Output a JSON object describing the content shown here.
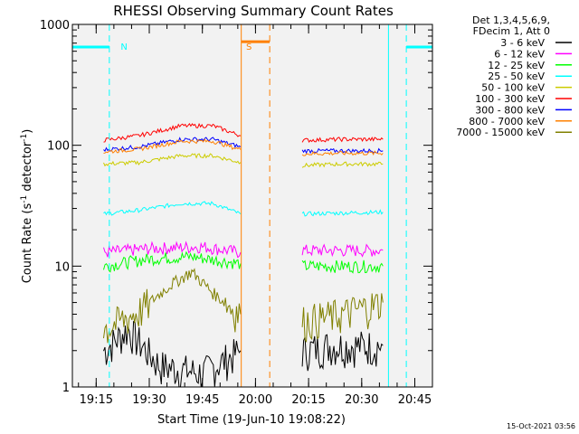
{
  "chart_data": {
    "type": "line",
    "title": "RHESSI Observing Summary Count Rates",
    "xlabel": "Start Time (19-Jun-10 19:08:22)",
    "ylabel_parts": [
      "Count Rate (s",
      "-1",
      " detector",
      "-1",
      ")"
    ],
    "yscale": "log",
    "ylim": [
      1,
      1000
    ],
    "xlim": [
      19.138,
      20.833
    ],
    "x_ticks": [
      {
        "v": 19.25,
        "label": "19:15"
      },
      {
        "v": 19.5,
        "label": "19:30"
      },
      {
        "v": 19.75,
        "label": "19:45"
      },
      {
        "v": 20.0,
        "label": "20:00"
      },
      {
        "v": 20.25,
        "label": "20:15"
      },
      {
        "v": 20.5,
        "label": "20:30"
      },
      {
        "v": 20.75,
        "label": "20:45"
      }
    ],
    "y_ticks": [
      {
        "v": 1,
        "label": "1"
      },
      {
        "v": 10,
        "label": "10"
      },
      {
        "v": 100,
        "label": "100"
      },
      {
        "v": 1000,
        "label": "1000"
      }
    ],
    "legend_header": [
      "Det 1,3,4,5,6,9,",
      "FDecim 1, Att 0"
    ],
    "series": [
      {
        "name": "3 - 6 keV",
        "color": "#000000",
        "segments": [
          [
            [
              19.285,
              2.0
            ],
            [
              19.4,
              3.0
            ],
            [
              19.55,
              1.5
            ],
            [
              19.75,
              1.3
            ],
            [
              19.93,
              2.0
            ]
          ],
          [
            [
              20.22,
              2.0
            ],
            [
              20.35,
              2.2
            ],
            [
              20.6,
              2.2
            ]
          ]
        ]
      },
      {
        "name": "6 - 12 keV",
        "color": "#ff00ff",
        "segments": [
          [
            [
              19.285,
              13.0
            ],
            [
              19.5,
              14.0
            ],
            [
              19.75,
              14.5
            ],
            [
              19.93,
              13.0
            ]
          ],
          [
            [
              20.22,
              13.5
            ],
            [
              20.4,
              13.5
            ],
            [
              20.6,
              13.5
            ]
          ]
        ]
      },
      {
        "name": "12 - 25 keV",
        "color": "#00ff00",
        "segments": [
          [
            [
              19.285,
              10.0
            ],
            [
              19.5,
              11.5
            ],
            [
              19.7,
              12.0
            ],
            [
              19.93,
              10.5
            ]
          ],
          [
            [
              20.22,
              10.0
            ],
            [
              20.4,
              10.0
            ],
            [
              20.6,
              10.0
            ]
          ]
        ]
      },
      {
        "name": "25 - 50 keV",
        "color": "#00ffff",
        "segments": [
          [
            [
              19.285,
              27.0
            ],
            [
              19.45,
              29.0
            ],
            [
              19.65,
              33.0
            ],
            [
              19.8,
              33.0
            ],
            [
              19.93,
              27.0
            ]
          ],
          [
            [
              20.22,
              27.0
            ],
            [
              20.4,
              27.5
            ],
            [
              20.6,
              28.0
            ]
          ]
        ]
      },
      {
        "name": "50 - 100 keV",
        "color": "#cccc00",
        "segments": [
          [
            [
              19.285,
              70.0
            ],
            [
              19.45,
              72.0
            ],
            [
              19.65,
              82.0
            ],
            [
              19.8,
              82.0
            ],
            [
              19.93,
              72.0
            ]
          ],
          [
            [
              20.22,
              68.0
            ],
            [
              20.4,
              70.0
            ],
            [
              20.6,
              70.0
            ]
          ]
        ]
      },
      {
        "name": "100 - 300 keV",
        "color": "#ff0000",
        "segments": [
          [
            [
              19.285,
              110.0
            ],
            [
              19.45,
              120.0
            ],
            [
              19.65,
              145.0
            ],
            [
              19.8,
              145.0
            ],
            [
              19.93,
              120.0
            ]
          ],
          [
            [
              20.22,
              110.0
            ],
            [
              20.4,
              112.0
            ],
            [
              20.6,
              112.0
            ]
          ]
        ]
      },
      {
        "name": "300 - 800 keV",
        "color": "#0000ff",
        "segments": [
          [
            [
              19.285,
              92.0
            ],
            [
              19.45,
              97.0
            ],
            [
              19.65,
              112.0
            ],
            [
              19.8,
              112.0
            ],
            [
              19.93,
              97.0
            ]
          ],
          [
            [
              20.22,
              90.0
            ],
            [
              20.4,
              90.0
            ],
            [
              20.6,
              90.0
            ]
          ]
        ]
      },
      {
        "name": "800 - 7000 keV",
        "color": "#ff8000",
        "segments": [
          [
            [
              19.285,
              88.0
            ],
            [
              19.45,
              93.0
            ],
            [
              19.65,
              108.0
            ],
            [
              19.8,
              108.0
            ],
            [
              19.93,
              92.0
            ]
          ],
          [
            [
              20.22,
              85.0
            ],
            [
              20.4,
              86.0
            ],
            [
              20.6,
              86.0
            ]
          ]
        ]
      },
      {
        "name": "7000 - 15000 keV",
        "color": "#808000",
        "segments": [
          [
            [
              19.285,
              3.0
            ],
            [
              19.45,
              4.2
            ],
            [
              19.6,
              7.0
            ],
            [
              19.7,
              9.0
            ],
            [
              19.8,
              6.0
            ],
            [
              19.93,
              4.0
            ]
          ],
          [
            [
              20.22,
              3.5
            ],
            [
              20.4,
              4.0
            ],
            [
              20.6,
              5.0
            ]
          ]
        ]
      }
    ],
    "annotations": [
      {
        "text": "N",
        "color": "#00ffff",
        "x": 19.34
      },
      {
        "text": "S",
        "color": "#ff8000",
        "x": 19.93
      }
    ],
    "flags": [
      {
        "name": "night",
        "color": "#00ffff",
        "value": 650,
        "x": [
          19.138,
          19.312
        ]
      },
      {
        "name": "night",
        "color": "#00ffff",
        "value": 650,
        "x": [
          20.71,
          20.833
        ]
      },
      {
        "name": "saa",
        "color": "#ff8000",
        "value": 720,
        "x": [
          19.933,
          20.067
        ]
      }
    ],
    "vlines": [
      {
        "x": 19.138,
        "color": "#00ffff",
        "dash": false
      },
      {
        "x": 19.312,
        "color": "#00ffff",
        "dash": true
      },
      {
        "x": 19.933,
        "color": "#ff8000",
        "dash": false
      },
      {
        "x": 20.067,
        "color": "#ff8000",
        "dash": true
      },
      {
        "x": 20.626,
        "color": "#00ffff",
        "dash": false
      },
      {
        "x": 20.71,
        "color": "#00ffff",
        "dash": true
      }
    ],
    "grid": false
  },
  "footer": {
    "timestamp": "15-Oct-2021 03:56"
  }
}
